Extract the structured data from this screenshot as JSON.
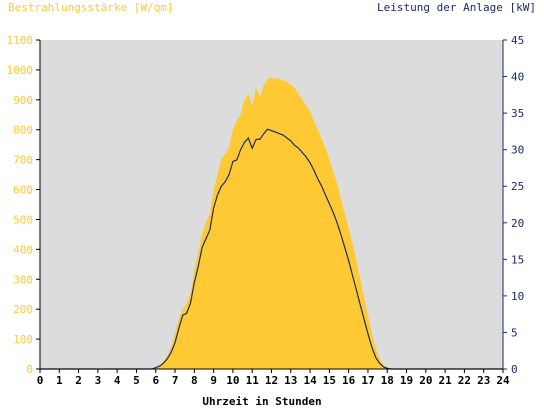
{
  "chart_data": {
    "type": "area",
    "title_left": "Bestrahlungsstärke [W/qm]",
    "title_right": "Leistung der Anlage [kW]",
    "xlabel": "Uhrzeit in Stunden",
    "x_ticks": [
      "0",
      "1",
      "2",
      "3",
      "4",
      "5",
      "6",
      "7",
      "8",
      "9",
      "10",
      "11",
      "12",
      "13",
      "14",
      "15",
      "16",
      "17",
      "18",
      "19",
      "20",
      "21",
      "22",
      "23",
      "24"
    ],
    "xlim": [
      0,
      24
    ],
    "y_left_ticks": [
      0,
      100,
      200,
      300,
      400,
      500,
      600,
      700,
      800,
      900,
      1000,
      1100
    ],
    "ylim_left": [
      0,
      1100
    ],
    "y_right_ticks": [
      0,
      5,
      10,
      15,
      20,
      25,
      30,
      35,
      40,
      45
    ],
    "ylim_right": [
      0,
      45
    ],
    "grid": false,
    "colors": {
      "irradiance": "#FFC933",
      "power": "#1A2A6C",
      "plot_bg": "#DCDCDC",
      "left_axis_text": "#FFC933",
      "right_axis_text": "#1A2A6C",
      "axis_text": "#000000"
    },
    "series": [
      {
        "axis": "left",
        "x": [
          0,
          5.8,
          6.0,
          6.2,
          6.4,
          6.6,
          6.8,
          7.0,
          7.2,
          7.4,
          7.6,
          7.8,
          8.0,
          8.2,
          8.4,
          8.6,
          8.8,
          9.0,
          9.2,
          9.4,
          9.6,
          9.8,
          10.0,
          10.2,
          10.4,
          10.6,
          10.8,
          11.0,
          11.2,
          11.4,
          11.6,
          11.8,
          12.0,
          12.2,
          12.4,
          12.6,
          12.8,
          13.0,
          13.2,
          13.4,
          13.6,
          13.8,
          14.0,
          14.2,
          14.4,
          14.6,
          14.8,
          15.0,
          15.2,
          15.4,
          15.6,
          15.8,
          16.0,
          16.2,
          16.4,
          16.6,
          16.8,
          17.0,
          17.2,
          17.4,
          17.6,
          17.8,
          18.0,
          18.2,
          18.4,
          18.6,
          18.8,
          19.0,
          24
        ],
        "values": [
          0,
          0,
          5,
          12,
          25,
          45,
          75,
          120,
          170,
          200,
          220,
          255,
          330,
          390,
          450,
          490,
          520,
          600,
          650,
          700,
          720,
          740,
          800,
          830,
          850,
          900,
          920,
          880,
          940,
          910,
          950,
          970,
          975,
          970,
          972,
          965,
          960,
          950,
          940,
          920,
          900,
          880,
          860,
          830,
          800,
          770,
          740,
          700,
          660,
          620,
          570,
          520,
          470,
          420,
          360,
          300,
          240,
          180,
          120,
          70,
          35,
          15,
          5,
          2,
          0,
          0,
          0,
          0,
          0
        ]
      },
      {
        "axis": "right",
        "x": [
          0,
          5.8,
          6.0,
          6.2,
          6.4,
          6.6,
          6.8,
          7.0,
          7.2,
          7.4,
          7.6,
          7.8,
          8.0,
          8.2,
          8.4,
          8.6,
          8.8,
          9.0,
          9.2,
          9.4,
          9.6,
          9.8,
          10.0,
          10.2,
          10.4,
          10.6,
          10.8,
          11.0,
          11.2,
          11.4,
          11.6,
          11.8,
          12.0,
          12.2,
          12.4,
          12.6,
          12.8,
          13.0,
          13.2,
          13.4,
          13.6,
          13.8,
          14.0,
          14.2,
          14.4,
          14.6,
          14.8,
          15.0,
          15.2,
          15.4,
          15.6,
          15.8,
          16.0,
          16.2,
          16.4,
          16.6,
          16.8,
          17.0,
          17.2,
          17.4,
          17.6,
          17.8,
          18.0,
          18.2,
          18.4,
          18.6,
          18.8,
          19.0,
          24
        ],
        "values": [
          0,
          0,
          0.2,
          0.4,
          0.8,
          1.4,
          2.3,
          3.6,
          5.6,
          7.4,
          7.6,
          9.0,
          11.8,
          14.0,
          16.6,
          17.8,
          19.0,
          22.0,
          23.8,
          25.0,
          25.6,
          26.6,
          28.4,
          28.6,
          30.0,
          31.0,
          31.6,
          30.2,
          31.4,
          31.4,
          32.2,
          32.8,
          32.6,
          32.4,
          32.2,
          32.0,
          31.6,
          31.2,
          30.6,
          30.2,
          29.6,
          29.0,
          28.2,
          27.2,
          26.0,
          25.0,
          23.8,
          22.6,
          21.4,
          20.0,
          18.4,
          16.6,
          14.8,
          12.8,
          10.8,
          8.8,
          6.8,
          4.8,
          3.0,
          1.6,
          0.8,
          0.3,
          0.1,
          0,
          0,
          0,
          0,
          0,
          0
        ]
      }
    ]
  }
}
